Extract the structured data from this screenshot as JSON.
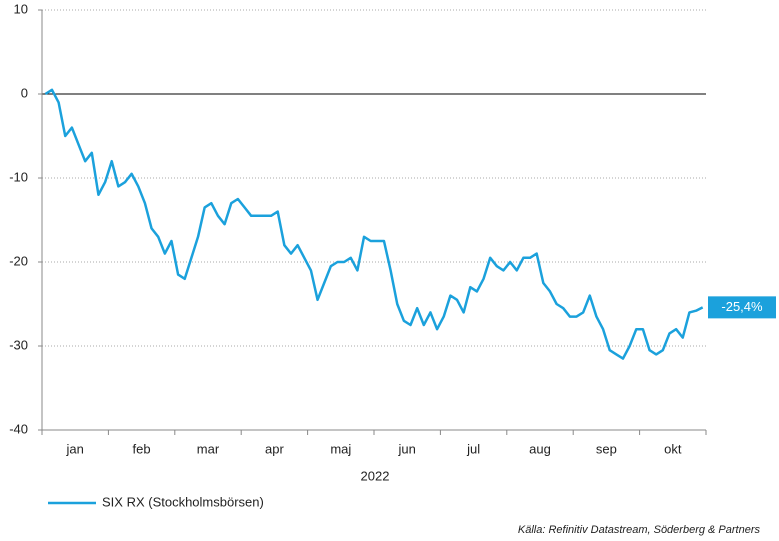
{
  "chart_data": {
    "type": "line",
    "xlabel": "2022",
    "source": "Källa: Refinitiv Datastream, Söderberg & Partners",
    "categories": [
      null,
      null,
      null,
      null,
      "jan",
      null,
      null,
      null,
      null,
      null,
      null,
      null,
      null,
      null,
      "feb",
      null,
      null,
      null,
      null,
      null,
      null,
      null,
      null,
      null,
      "mar",
      null,
      null,
      null,
      null,
      null,
      null,
      null,
      null,
      null,
      "apr",
      null,
      null,
      null,
      null,
      null,
      null,
      null,
      null,
      null,
      "maj",
      null,
      null,
      null,
      null,
      null,
      null,
      null,
      null,
      null,
      "jun",
      null,
      null,
      null,
      null,
      null,
      null,
      null,
      null,
      null,
      "jul",
      null,
      null,
      null,
      null,
      null,
      null,
      null,
      null,
      null,
      "aug",
      null,
      null,
      null,
      null,
      null,
      null,
      null,
      null,
      null,
      "sep",
      null,
      null,
      null,
      null,
      null,
      null,
      null,
      null,
      null,
      "okt",
      null,
      null,
      null,
      null,
      null
    ],
    "series": [
      {
        "name": "SIX RX (Stockholmsbörsen)",
        "color": "#1ba1dc",
        "values": [
          0,
          0.5,
          -1,
          -5,
          -4,
          -6,
          -8,
          -7,
          -12,
          -10.5,
          -8,
          -11,
          -10.5,
          -9.5,
          -11,
          -13,
          -16,
          -17,
          -19,
          -17.5,
          -21.5,
          -22,
          -19.5,
          -17,
          -13.5,
          -13,
          -14.5,
          -15.5,
          -13,
          -12.5,
          -13.5,
          -14.5,
          -14.5,
          -14.5,
          -14.5,
          -14,
          -18,
          -19,
          -18,
          -19.5,
          -21,
          -24.5,
          -22.5,
          -20.5,
          -20,
          -20,
          -19.5,
          -21,
          -17,
          -17.5,
          -17.5,
          -17.5,
          -21,
          -25,
          -27,
          -27.5,
          -25.5,
          -27.5,
          -26,
          -28,
          -26.5,
          -24,
          -24.5,
          -26,
          -23,
          -23.5,
          -22,
          -19.5,
          -20.5,
          -21,
          -20,
          -21,
          -19.5,
          -19.5,
          -19,
          -22.5,
          -23.5,
          -25,
          -25.5,
          -26.5,
          -26.5,
          -26,
          -24,
          -26.5,
          -28,
          -30.5,
          -31,
          -31.5,
          -30,
          -28,
          -28,
          -30.5,
          -31,
          -30.5,
          -28.5,
          -28,
          -29,
          -26,
          -25.8,
          -25.4
        ],
        "value_labels": [
          null,
          null,
          null,
          null,
          null,
          null,
          null,
          null,
          null,
          null,
          null,
          null,
          null,
          null,
          null,
          null,
          null,
          null,
          null,
          null,
          null,
          null,
          null,
          null,
          null,
          null,
          null,
          null,
          null,
          null,
          null,
          null,
          null,
          null,
          null,
          null,
          null,
          null,
          null,
          null,
          null,
          null,
          null,
          null,
          null,
          null,
          null,
          null,
          null,
          null,
          null,
          null,
          null,
          null,
          null,
          null,
          null,
          null,
          null,
          null,
          null,
          null,
          null,
          null,
          null,
          null,
          null,
          null,
          null,
          null,
          null,
          null,
          null,
          null,
          null,
          null,
          null,
          null,
          null,
          null,
          null,
          null,
          null,
          null,
          null,
          null,
          null,
          null,
          null,
          null,
          null,
          null,
          null,
          null,
          null,
          null,
          null,
          null,
          null,
          "-25,4%"
        ]
      }
    ],
    "ylim": [
      -40,
      10
    ],
    "yticks": [
      -40,
      -30,
      -20,
      -10,
      0,
      10
    ],
    "grid": true
  }
}
